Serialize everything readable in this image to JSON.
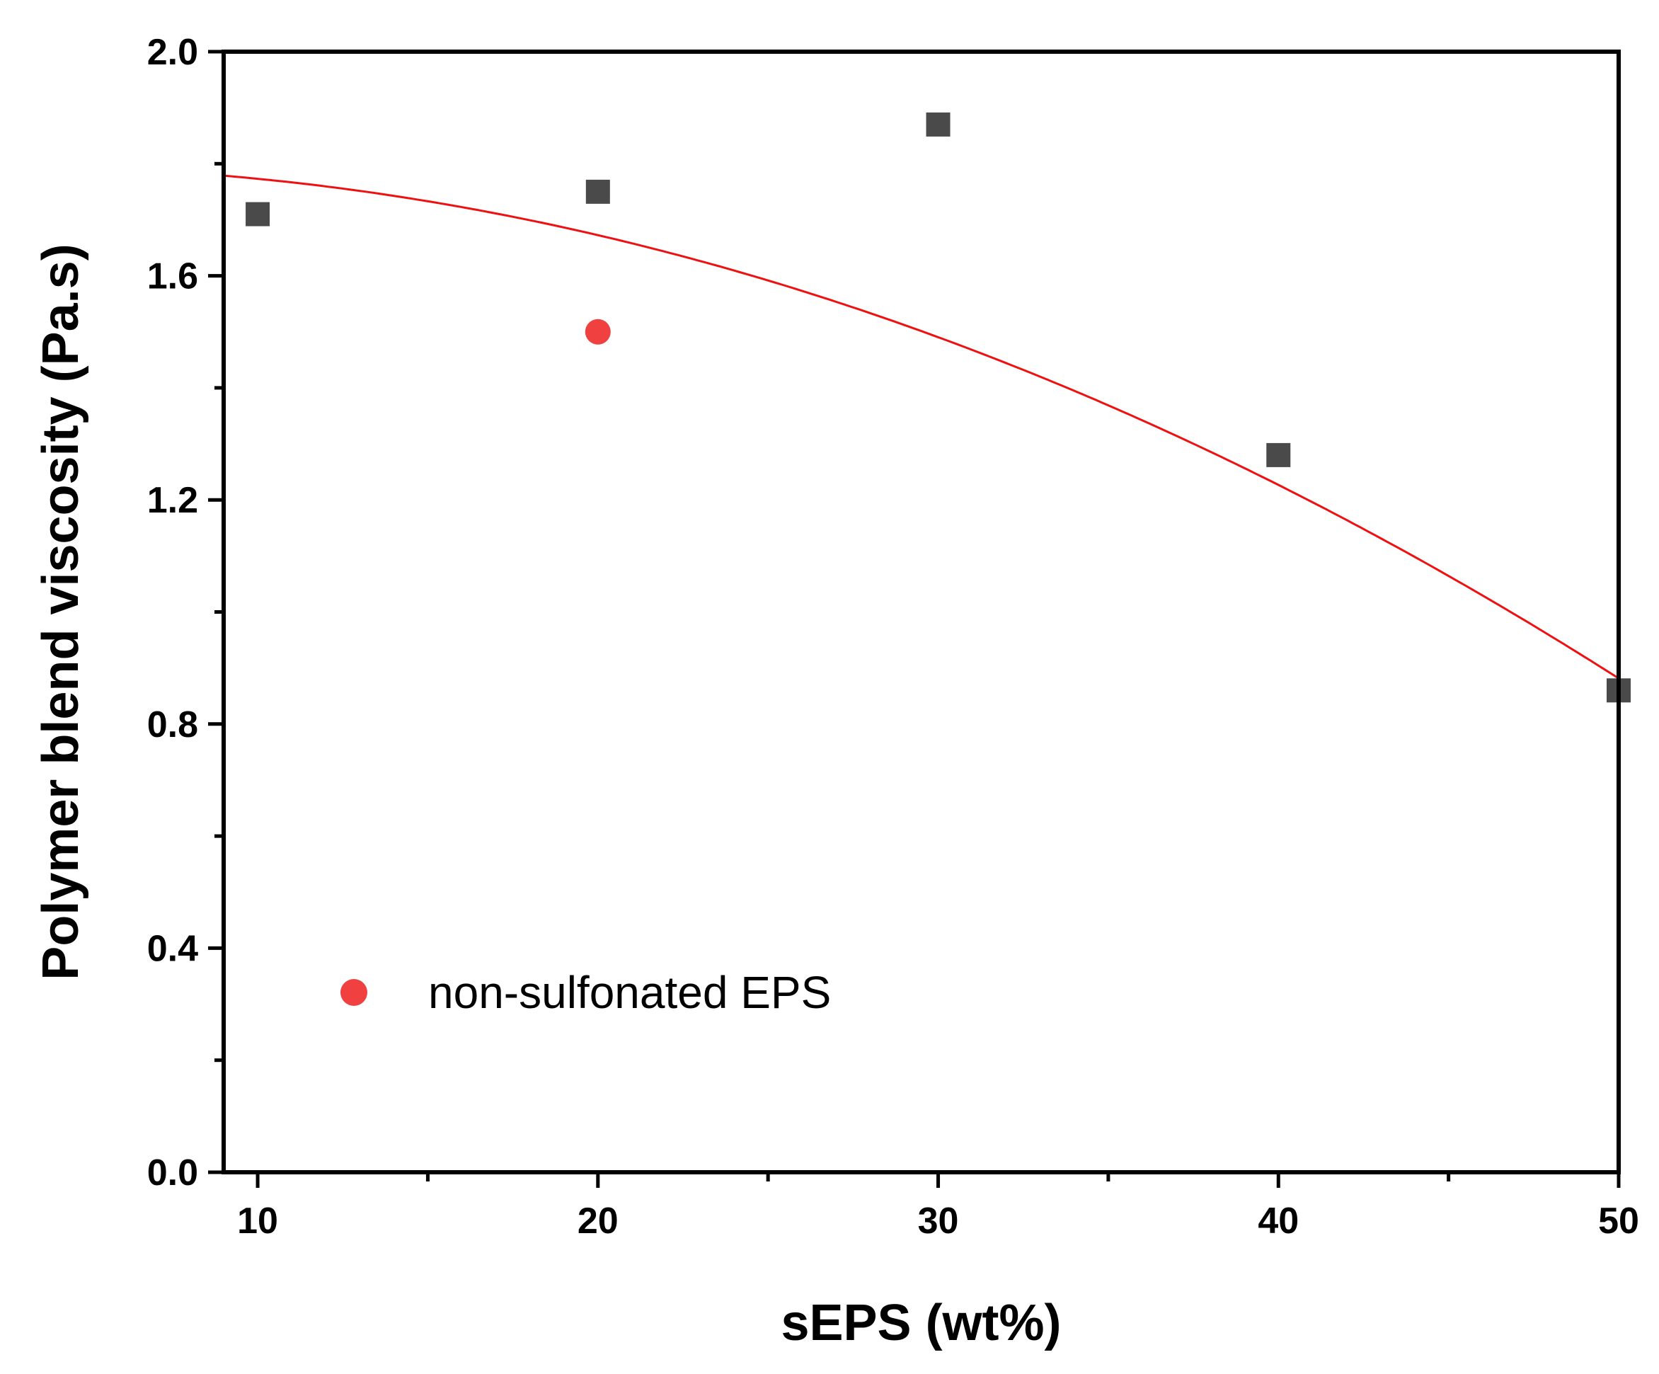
{
  "chart_data": {
    "type": "scatter",
    "title": "",
    "xlabel": "sEPS (wt%)",
    "ylabel": "Polymer blend viscosity (Pa.s)",
    "xlim": [
      9,
      50
    ],
    "ylim": [
      0.0,
      2.0
    ],
    "x_ticks": [
      10,
      20,
      30,
      40,
      50
    ],
    "x_tick_labels": [
      "10",
      "20",
      "30",
      "40",
      "50"
    ],
    "y_ticks": [
      0.0,
      0.4,
      0.8,
      1.2,
      1.6,
      2.0
    ],
    "y_tick_labels": [
      "0.0",
      "0.4",
      "0.8",
      "1.2",
      "1.6",
      "2.0"
    ],
    "grid": false,
    "series": [
      {
        "marker": "square",
        "color": "#4a4a4a",
        "x": [
          10,
          20,
          30,
          40,
          50
        ],
        "y": [
          1.71,
          1.75,
          1.87,
          1.28,
          0.86
        ]
      },
      {
        "name": "non-sulfonated EPS",
        "marker": "circle",
        "color": "#f04040",
        "x": [
          20
        ],
        "y": [
          1.5
        ]
      }
    ],
    "fit": {
      "type": "quadratic",
      "color": "#ee1111",
      "x": [
        9,
        20,
        30,
        40,
        50
      ],
      "y": [
        1.78,
        1.67,
        1.49,
        1.23,
        0.88
      ]
    },
    "legend": {
      "placement": "bottom-left",
      "entries": [
        "non-sulfonated EPS"
      ]
    }
  }
}
